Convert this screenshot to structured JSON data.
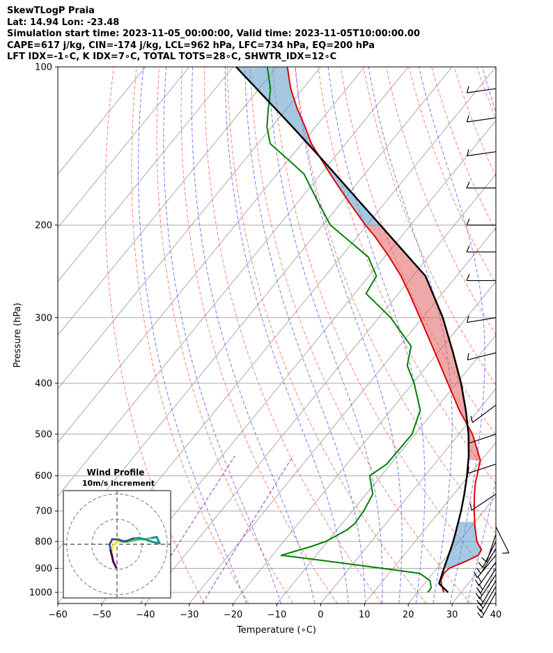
{
  "header": {
    "line1": "SkewTLogP Praia",
    "line2": "Lat: 14.94   Lon: -23.48",
    "line3": "Simulation start time: 2023-11-05_00:00:00, Valid time: 2023-11-05T10:00:00.00",
    "line4": "CAPE=617 j/kg, CIN=-174 j/kg, LCL=962 hPa, LFC=734 hPa, EQ=200 hPa",
    "line5": "LFT IDX=-1∘C, K IDX=7∘C, TOTAL TOTS=28∘C, SHWTR_IDX=12∘C"
  },
  "colors": {
    "temperature": "#e00000",
    "dewpoint": "#008000",
    "parcel": "#000000",
    "cape_fill": "#e06060",
    "cin_fill": "#5a9bc8",
    "dry_adiabat": "#ff6666",
    "moist_adiabat": "#5555ff",
    "mixing_ratio": "#9933cc",
    "isotherm": "#a0a0a0"
  },
  "chart_data": {
    "type": "line",
    "subtype": "skew-t log-p",
    "xlabel": "Temperature (∘C)",
    "ylabel": "Pressure (hPa)",
    "xlim": [
      -60,
      40
    ],
    "ylim": [
      1050,
      100
    ],
    "y_scale": "log",
    "x_ticks": [
      -60,
      -50,
      -40,
      -30,
      -20,
      -10,
      0,
      10,
      20,
      30,
      40
    ],
    "y_ticks": [
      1000,
      900,
      800,
      700,
      600,
      500,
      400,
      300,
      200,
      100
    ],
    "grid": true,
    "series": [
      {
        "name": "",
        "role": "temperature",
        "p": [
          1000,
          970,
          950,
          920,
          900,
          870,
          850,
          830,
          800,
          750,
          700,
          650,
          620,
          600,
          560,
          500,
          450,
          400,
          350,
          300,
          270,
          250,
          230,
          210,
          200,
          180,
          160,
          140,
          130,
          120,
          110,
          100
        ],
        "t": [
          26,
          24.3,
          23.2,
          22.5,
          22.8,
          25.5,
          27,
          26.7,
          24.1,
          20.9,
          17.8,
          14.7,
          12.9,
          11.9,
          9.7,
          3.1,
          -4.4,
          -12,
          -20.6,
          -30.6,
          -37.5,
          -42.7,
          -48.9,
          -56.1,
          -60.3,
          -68.7,
          -77.8,
          -87.8,
          -92.4,
          -97.6,
          -102.8,
          -107.6
        ]
      },
      {
        "name": "",
        "role": "dewpoint",
        "p": [
          1000,
          980,
          950,
          920,
          900,
          860,
          850,
          820,
          800,
          760,
          740,
          700,
          650,
          600,
          570,
          500,
          450,
          400,
          370,
          340,
          300,
          270,
          250,
          230,
          200,
          180,
          160,
          150,
          140,
          130,
          120,
          110,
          100
        ],
        "t": [
          22.4,
          22.3,
          20.7,
          17,
          7.5,
          -12.5,
          -18,
          -13.1,
          -10.4,
          -7.7,
          -7.1,
          -7.4,
          -8.5,
          -12.6,
          -10.9,
          -10.7,
          -13.3,
          -19.7,
          -24.6,
          -27.3,
          -37.3,
          -47.4,
          -48.3,
          -53.7,
          -68.3,
          -75.7,
          -83.8,
          -90.2,
          -97.2,
          -101.1,
          -104.2,
          -107.4,
          -112.2
        ]
      },
      {
        "name": "",
        "role": "parcel",
        "p": [
          1000,
          962,
          900,
          850,
          800,
          734,
          700,
          650,
          600,
          550,
          500,
          450,
          400,
          350,
          300,
          250,
          200,
          170,
          150,
          130,
          115,
          100
        ],
        "t": [
          27,
          23.3,
          21.6,
          20.2,
          18.7,
          16.2,
          14.8,
          12.4,
          9.6,
          6.3,
          2.2,
          -2.9,
          -9,
          -16.5,
          -25.4,
          -37.1,
          -56.9,
          -71.3,
          -82.4,
          -95.3,
          -106.5,
          -119.3
        ]
      }
    ],
    "shaded_regions": [
      {
        "name": "CAPE",
        "between": [
          "parcel",
          "temperature"
        ],
        "p_range": [
          200,
          560
        ]
      },
      {
        "name": "CIN",
        "between": [
          "temperature",
          "parcel"
        ],
        "p_range": [
          734,
          900
        ]
      },
      {
        "name": "CIN",
        "between": [
          "temperature",
          "parcel"
        ],
        "p_range": [
          100,
          200
        ]
      }
    ],
    "wind_barbs": [
      {
        "p": 1000,
        "u": -5,
        "v": -9
      },
      {
        "p": 975,
        "u": -6,
        "v": -10
      },
      {
        "p": 950,
        "u": -6,
        "v": -10
      },
      {
        "p": 925,
        "u": -6,
        "v": -9
      },
      {
        "p": 900,
        "u": -5,
        "v": -8
      },
      {
        "p": 875,
        "u": -5,
        "v": -7
      },
      {
        "p": 850,
        "u": -5,
        "v": -6
      },
      {
        "p": 825,
        "u": -3,
        "v": -5
      },
      {
        "p": 800,
        "u": -2,
        "v": -4
      },
      {
        "p": 775,
        "u": -1,
        "v": -3
      },
      {
        "p": 750,
        "u": 1,
        "v": -2
      },
      {
        "p": 650,
        "u": -3,
        "v": -2
      },
      {
        "p": 570,
        "u": -3,
        "v": -1
      },
      {
        "p": 500,
        "u": -3,
        "v": -1
      },
      {
        "p": 440,
        "u": -4,
        "v": -3
      },
      {
        "p": 350,
        "u": -4,
        "v": -1
      },
      {
        "p": 300,
        "u": -6,
        "v": -1
      },
      {
        "p": 255,
        "u": -7,
        "v": 0
      },
      {
        "p": 225,
        "u": -7,
        "v": 0
      },
      {
        "p": 200,
        "u": -7,
        "v": 0
      },
      {
        "p": 170,
        "u": -7,
        "v": 0
      },
      {
        "p": 145,
        "u": -7,
        "v": -1
      },
      {
        "p": 125,
        "u": -7,
        "v": -1
      },
      {
        "p": 110,
        "u": -7,
        "v": -1
      }
    ]
  },
  "hodograph": {
    "title": "Wind Profile",
    "subtitle": "10m/s increment",
    "ring_increment_ms": 10,
    "rings": [
      10,
      20,
      30
    ],
    "u": [
      -2,
      -1.3,
      -0.2,
      1,
      2.5,
      4.5,
      5.5,
      7,
      8.8,
      11,
      12.5,
      13.4,
      11,
      9,
      7,
      5,
      3,
      1.8,
      0.5,
      -1.5,
      -2.3,
      -2,
      -1.6,
      -1.2,
      -0.3
    ],
    "v": [
      -3.2,
      -0.7,
      0.7,
      1,
      0.7,
      1,
      1.2,
      1.5,
      1.6,
      2,
      2.3,
      0.3,
      0.8,
      1.5,
      2,
      1.8,
      1,
      1,
      1.5,
      1.6,
      0,
      -2,
      -3.5,
      -5.4,
      -7.3
    ],
    "colormap": "viridis"
  }
}
